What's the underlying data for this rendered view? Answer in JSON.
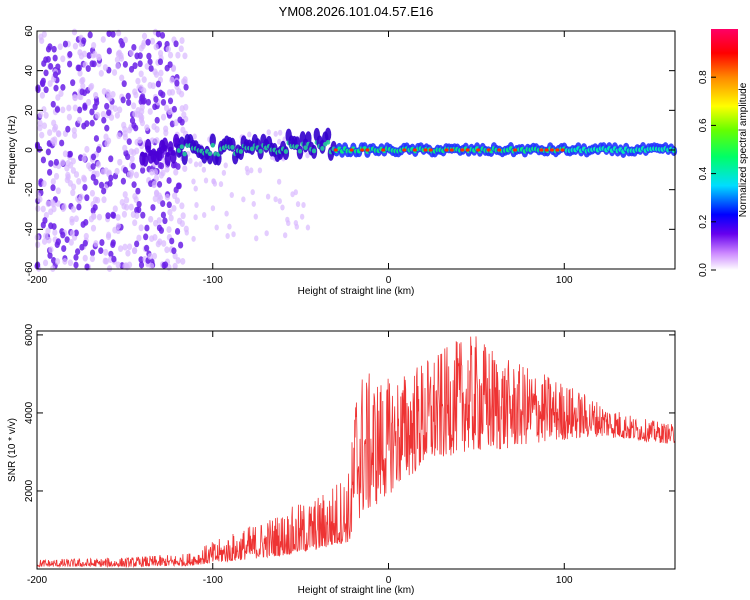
{
  "title": "YM08.2026.101.04.57.E16",
  "chart_data": [
    {
      "type": "heatmap",
      "title": "YM08.2026.101.04.57.E16",
      "xlabel": "Height of straight line (km)",
      "ylabel": "Frequency (Hz)",
      "xlim": [
        -200,
        163
      ],
      "ylim": [
        -60,
        60
      ],
      "x_ticks": [
        "-200",
        "-100",
        "0",
        "100"
      ],
      "y_ticks": [
        "60",
        "40",
        "20",
        "0",
        "-20",
        "-40",
        "-60"
      ],
      "colorbar": {
        "label": "Normalized spectral amplitude",
        "range": [
          0,
          1
        ],
        "ticks": [
          "0.0",
          "0.2",
          "0.4",
          "0.6",
          "0.8"
        ]
      },
      "description_of_data": {
        "noise_region_x": [
          -200,
          -115
        ],
        "ridge_frequency_hz": 0,
        "ridge_start_x": -140,
        "peak_amplitude_region_x": [
          -30,
          100
        ]
      }
    },
    {
      "type": "line",
      "xlabel": "Height of straight line (km)",
      "ylabel": "SNR (10 * v/v)",
      "xlim": [
        -200,
        163
      ],
      "ylim": [
        0,
        6100
      ],
      "x_ticks": [
        "-200",
        "-100",
        "0",
        "100"
      ],
      "y_ticks": [
        "6000",
        "4000",
        "2000"
      ],
      "color": "#ee3333",
      "envelope": {
        "x": [
          -200,
          -150,
          -115,
          -100,
          -80,
          -60,
          -40,
          -22,
          -18,
          -10,
          0,
          10,
          20,
          30,
          40,
          50,
          60,
          70,
          80,
          100,
          120,
          140,
          163
        ],
        "low": [
          60,
          60,
          80,
          150,
          250,
          350,
          500,
          700,
          1200,
          1500,
          1900,
          2300,
          2600,
          2800,
          3000,
          3000,
          3000,
          3100,
          3200,
          3300,
          3400,
          3300,
          3200
        ],
        "high": [
          250,
          300,
          400,
          700,
          1100,
          1500,
          1900,
          2600,
          5200,
          5000,
          4900,
          5100,
          5400,
          5600,
          5900,
          6000,
          5700,
          5300,
          5200,
          4800,
          4300,
          3900,
          3700
        ]
      }
    }
  ]
}
